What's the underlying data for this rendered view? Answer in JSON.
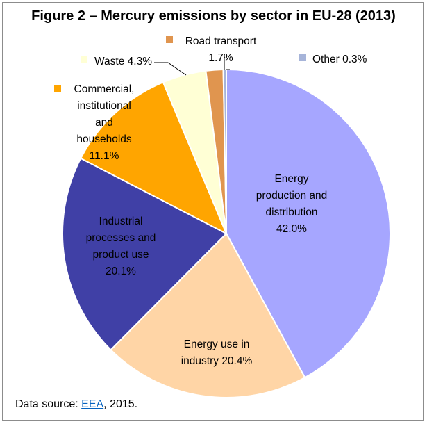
{
  "chart_data": {
    "type": "pie",
    "title": "Figure 2 – Mercury emissions by sector in EU-28 (2013)",
    "slices": [
      {
        "label": "Energy production and distribution",
        "value": 42.0,
        "display": "42.0%",
        "color": "#a6a6ff"
      },
      {
        "label": "Energy use in industry",
        "value": 20.4,
        "display": "20.4%",
        "color": "#ffd5a6"
      },
      {
        "label": "Industrial processes and product use",
        "value": 20.1,
        "display": "20.1%",
        "color": "#4040a6"
      },
      {
        "label": "Commercial, institutional and households",
        "value": 11.1,
        "display": "11.1%",
        "color": "#ffa500"
      },
      {
        "label": "Waste",
        "value": 4.3,
        "display": "4.3%",
        "color": "#ffffd5"
      },
      {
        "label": "Road transport",
        "value": 1.7,
        "display": "1.7%",
        "color": "#e0954f"
      },
      {
        "label": "Other",
        "value": 0.3,
        "display": "0.3%",
        "color": "#a6b4d9"
      }
    ],
    "label_text": {
      "energy_production": [
        "Energy",
        "production and",
        "distribution",
        "42.0%"
      ],
      "energy_industry": [
        "Energy use in",
        "industry 20.4%"
      ],
      "industrial": [
        "Industrial",
        "processes and",
        "product use",
        "20.1%"
      ],
      "commercial": [
        "Commercial,",
        "institutional",
        "and",
        "households",
        "11.1%"
      ],
      "waste": "Waste 4.3%",
      "road": [
        "Road transport",
        "1.7%"
      ],
      "other": "Other 0.3%"
    }
  },
  "footer": {
    "source_prefix": "Data source: ",
    "source_link": "EEA",
    "source_suffix": ", 2015."
  }
}
